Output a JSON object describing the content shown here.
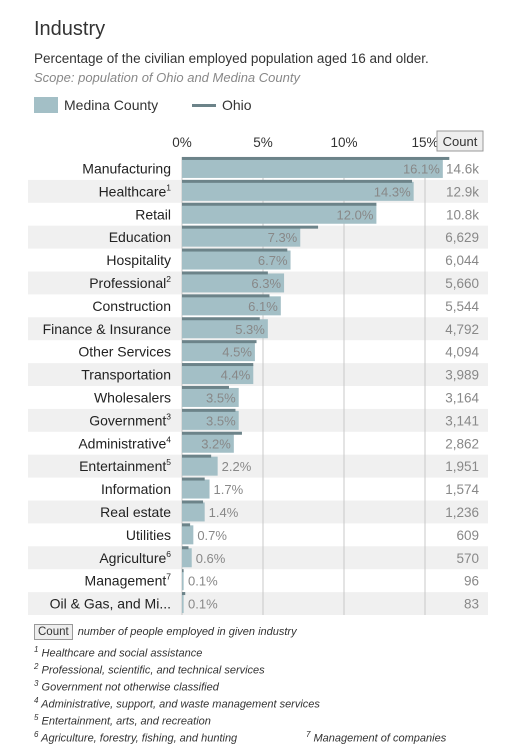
{
  "title": "Industry",
  "subtitle": "Percentage of the civilian employed population aged 16 and older.",
  "scope": "Scope: population of Ohio and Medina County",
  "legend": {
    "county": "Medina County",
    "ohio": "Ohio"
  },
  "colors": {
    "county_bar": "#a3bfc6",
    "ohio_line": "#6c8389",
    "row_alt": "#f0f0f0",
    "grid": "#c8c8c8"
  },
  "count_header": "Count",
  "chart_data": {
    "type": "bar",
    "orientation": "horizontal",
    "xlim": [
      0,
      16.5
    ],
    "ticks": [
      "0%",
      "5%",
      "10%",
      "15%"
    ],
    "categories": [
      "Manufacturing",
      "Healthcare",
      "Retail",
      "Education",
      "Hospitality",
      "Professional",
      "Construction",
      "Finance & Insurance",
      "Other Services",
      "Transportation",
      "Wholesalers",
      "Government",
      "Administrative",
      "Entertainment",
      "Information",
      "Real estate",
      "Utilities",
      "Agriculture",
      "Management",
      "Oil & Gas, and Mi..."
    ],
    "footnote_marks": [
      "",
      "1",
      "",
      "",
      "",
      "2",
      "",
      "",
      "",
      "",
      "",
      "3",
      "4",
      "5",
      "",
      "",
      "",
      "6",
      "7",
      ""
    ],
    "series": [
      {
        "name": "Medina County",
        "values": [
          16.1,
          14.3,
          12.0,
          7.3,
          6.7,
          6.3,
          6.1,
          5.3,
          4.5,
          4.4,
          3.5,
          3.5,
          3.2,
          2.2,
          1.7,
          1.4,
          0.7,
          0.6,
          0.1,
          0.1
        ]
      },
      {
        "name": "Ohio",
        "values": [
          16.5,
          14.2,
          12.0,
          8.4,
          6.5,
          5.3,
          5.4,
          4.8,
          4.6,
          4.4,
          2.9,
          3.3,
          3.7,
          1.8,
          1.4,
          1.3,
          0.5,
          0.4,
          0.1,
          0.2
        ]
      }
    ],
    "value_labels": [
      "16.1%",
      "14.3%",
      "12.0%",
      "7.3%",
      "6.7%",
      "6.3%",
      "6.1%",
      "5.3%",
      "4.5%",
      "4.4%",
      "3.5%",
      "3.5%",
      "3.2%",
      "2.2%",
      "1.7%",
      "1.4%",
      "0.7%",
      "0.6%",
      "0.1%",
      "0.1%"
    ],
    "counts": [
      "14.6k",
      "12.9k",
      "10.8k",
      "6,629",
      "6,044",
      "5,660",
      "5,544",
      "4,792",
      "4,094",
      "3,989",
      "3,164",
      "3,141",
      "2,862",
      "1,951",
      "1,574",
      "1,236",
      "609",
      "570",
      "96",
      "83"
    ]
  },
  "notes": {
    "count_label": "Count",
    "count_text": "number of people employed in given industry",
    "fn": [
      {
        "mark": "1",
        "text": "Healthcare and social assistance"
      },
      {
        "mark": "2",
        "text": "Professional, scientific, and technical services"
      },
      {
        "mark": "3",
        "text": "Government not otherwise classified"
      },
      {
        "mark": "4",
        "text": "Administrative, support, and waste management services"
      },
      {
        "mark": "5",
        "text": "Entertainment, arts, and recreation"
      },
      {
        "mark": "6",
        "text": "Agriculture, forestry, fishing, and hunting"
      },
      {
        "mark": "7",
        "text": "Management of companies"
      }
    ]
  }
}
